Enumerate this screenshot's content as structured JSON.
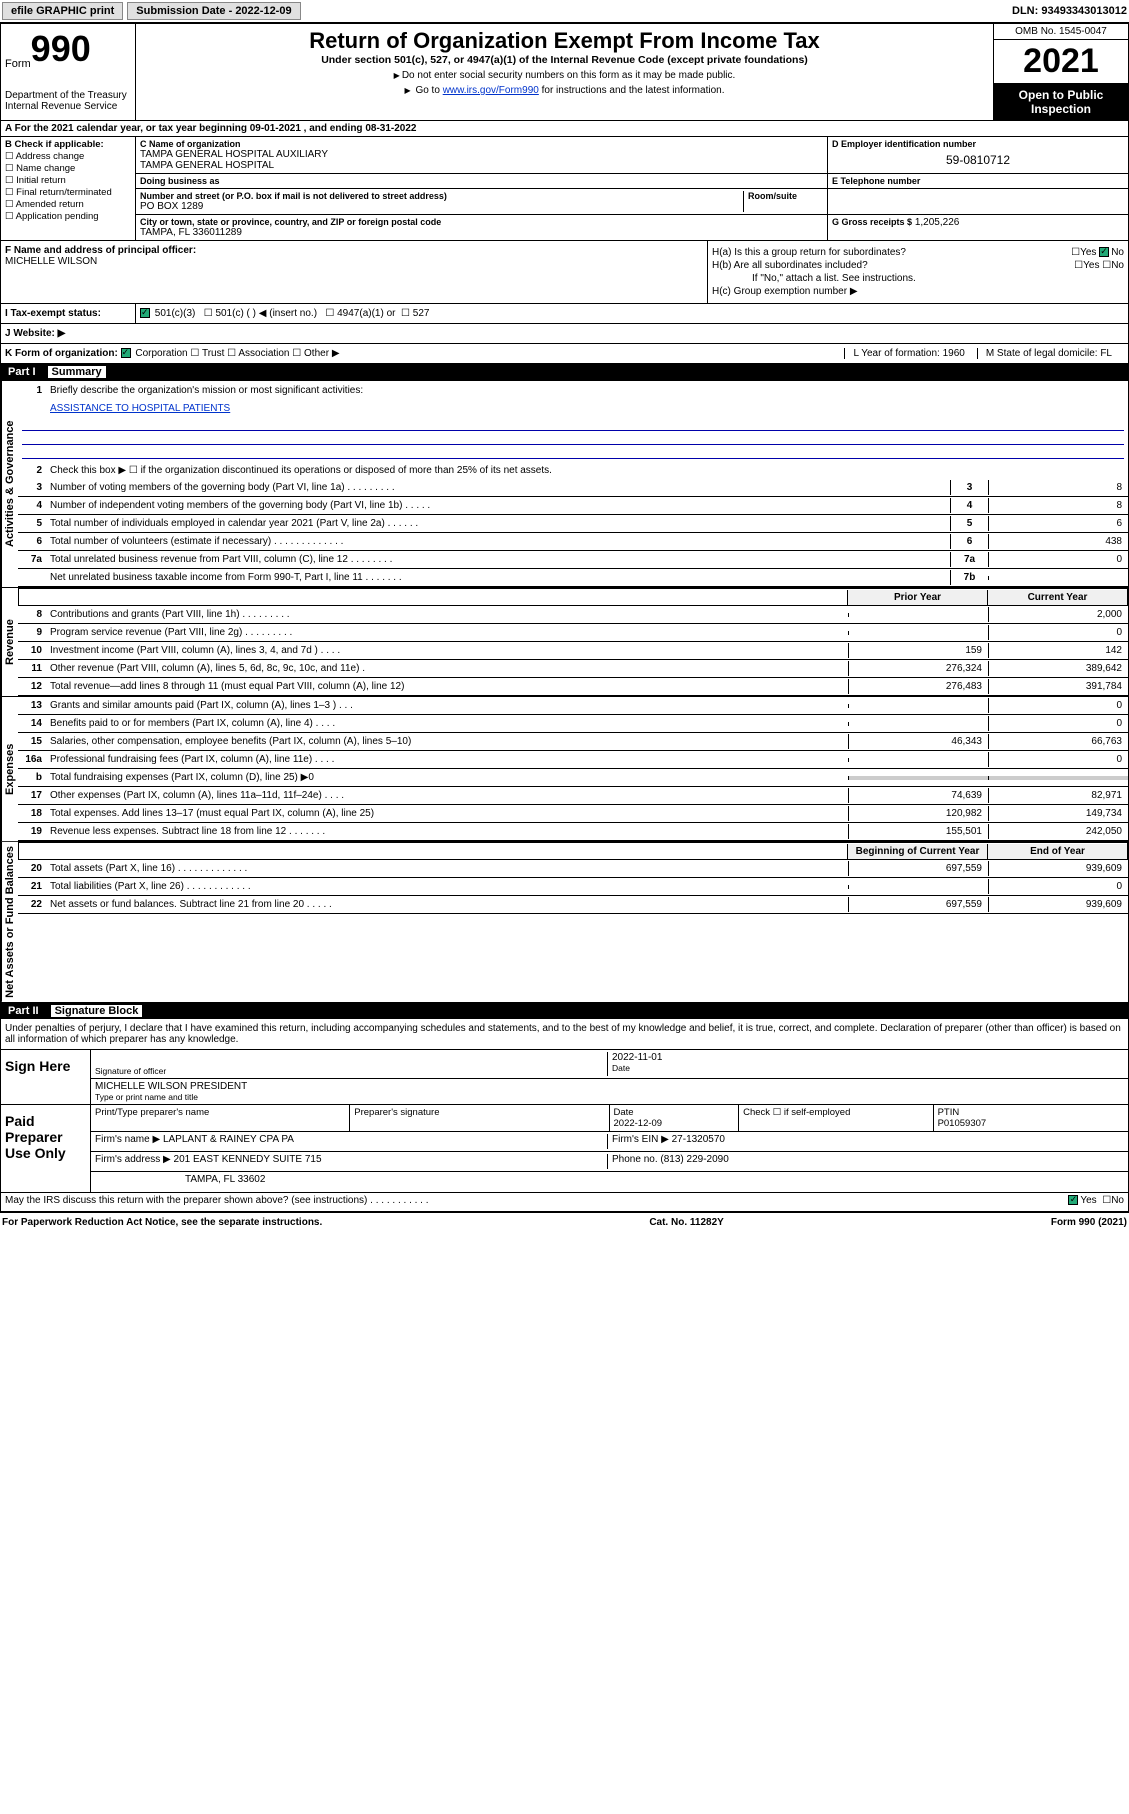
{
  "topbar": {
    "efile": "efile GRAPHIC print",
    "submission_label": "Submission Date - 2022-12-09",
    "dln": "DLN: 93493343013012"
  },
  "header": {
    "form_label": "Form",
    "form_number": "990",
    "dept": "Department of the Treasury\nInternal Revenue Service",
    "title": "Return of Organization Exempt From Income Tax",
    "sub": "Under section 501(c), 527, or 4947(a)(1) of the Internal Revenue Code (except private foundations)",
    "note1": "Do not enter social security numbers on this form as it may be made public.",
    "note2_pre": "Go to ",
    "note2_link": "www.irs.gov/Form990",
    "note2_post": " for instructions and the latest information.",
    "omb": "OMB No. 1545-0047",
    "year": "2021",
    "open": "Open to Public Inspection"
  },
  "row_a": "A For the 2021 calendar year, or tax year beginning 09-01-2021  , and ending 08-31-2022",
  "section_b": {
    "label": "B Check if applicable:",
    "items": [
      "Address change",
      "Name change",
      "Initial return",
      "Final return/terminated",
      "Amended return",
      "Application pending"
    ]
  },
  "section_c": {
    "name_label": "C Name of organization",
    "name1": "TAMPA GENERAL HOSPITAL AUXILIARY",
    "name2": "TAMPA GENERAL HOSPITAL",
    "dba_label": "Doing business as",
    "addr_label": "Number and street (or P.O. box if mail is not delivered to street address)",
    "room_label": "Room/suite",
    "addr": "PO BOX 1289",
    "city_label": "City or town, state or province, country, and ZIP or foreign postal code",
    "city": "TAMPA, FL  336011289"
  },
  "section_d": {
    "label": "D Employer identification number",
    "value": "59-0810712"
  },
  "section_e": {
    "label": "E Telephone number",
    "value": ""
  },
  "section_g": {
    "label": "G Gross receipts $",
    "value": "1,205,226"
  },
  "section_f": {
    "label": "F  Name and address of principal officer:",
    "value": "MICHELLE WILSON"
  },
  "section_h": {
    "ha": "H(a)  Is this a group return for subordinates?",
    "hb": "H(b)  Are all subordinates included?",
    "hnote": "If \"No,\" attach a list. See instructions.",
    "hc": "H(c)  Group exemption number ▶",
    "yes": "Yes",
    "no": "No"
  },
  "section_i": {
    "label": "I  Tax-exempt status:",
    "opt1": "501(c)(3)",
    "opt2": "501(c) (  ) ◀ (insert no.)",
    "opt3": "4947(a)(1) or",
    "opt4": "527"
  },
  "section_j": {
    "label": "J  Website: ▶"
  },
  "section_k": {
    "label": "K Form of organization:",
    "opts": [
      "Corporation",
      "Trust",
      "Association",
      "Other ▶"
    ],
    "l": "L Year of formation: 1960",
    "m": "M State of legal domicile: FL"
  },
  "part1": {
    "label": "Part I",
    "title": "Summary"
  },
  "summary": {
    "q1": "Briefly describe the organization's mission or most significant activities:",
    "mission": "ASSISTANCE TO HOSPITAL PATIENTS",
    "q2": "Check this box ▶ ☐  if the organization discontinued its operations or disposed of more than 25% of its net assets.",
    "rows3_7": [
      {
        "n": "3",
        "d": "Number of voting members of the governing body (Part VI, line 1a)  .    .    .    .    .    .    .    .    .",
        "b": "3",
        "v": "8"
      },
      {
        "n": "4",
        "d": "Number of independent voting members of the governing body (Part VI, line 1b)  .    .    .    .    .",
        "b": "4",
        "v": "8"
      },
      {
        "n": "5",
        "d": "Total number of individuals employed in calendar year 2021 (Part V, line 2a)  .    .    .    .    .    .",
        "b": "5",
        "v": "6"
      },
      {
        "n": "6",
        "d": "Total number of volunteers (estimate if necessary)  .    .    .    .    .    .    .    .    .    .    .    .    .",
        "b": "6",
        "v": "438"
      },
      {
        "n": "7a",
        "d": "Total unrelated business revenue from Part VIII, column (C), line 12  .    .    .    .    .    .    .    .",
        "b": "7a",
        "v": "0"
      },
      {
        "n": "",
        "d": "Net unrelated business taxable income from Form 990-T, Part I, line 11  .    .    .    .    .    .    .",
        "b": "7b",
        "v": ""
      }
    ],
    "col_hdr1": "Prior Year",
    "col_hdr2": "Current Year",
    "revenue": [
      {
        "n": "8",
        "d": "Contributions and grants (Part VIII, line 1h)  .    .    .    .    .    .    .    .    .",
        "p": "",
        "c": "2,000"
      },
      {
        "n": "9",
        "d": "Program service revenue (Part VIII, line 2g)  .    .    .    .    .    .    .    .    .",
        "p": "",
        "c": "0"
      },
      {
        "n": "10",
        "d": "Investment income (Part VIII, column (A), lines 3, 4, and 7d )  .    .    .    .",
        "p": "159",
        "c": "142"
      },
      {
        "n": "11",
        "d": "Other revenue (Part VIII, column (A), lines 5, 6d, 8c, 9c, 10c, and 11e)  .",
        "p": "276,324",
        "c": "389,642"
      },
      {
        "n": "12",
        "d": "Total revenue—add lines 8 through 11 (must equal Part VIII, column (A), line 12)",
        "p": "276,483",
        "c": "391,784"
      }
    ],
    "expenses": [
      {
        "n": "13",
        "d": "Grants and similar amounts paid (Part IX, column (A), lines 1–3 )  .    .    .",
        "p": "",
        "c": "0"
      },
      {
        "n": "14",
        "d": "Benefits paid to or for members (Part IX, column (A), line 4)  .    .    .    .",
        "p": "",
        "c": "0"
      },
      {
        "n": "15",
        "d": "Salaries, other compensation, employee benefits (Part IX, column (A), lines 5–10)",
        "p": "46,343",
        "c": "66,763"
      },
      {
        "n": "16a",
        "d": "Professional fundraising fees (Part IX, column (A), line 11e)  .    .    .    .",
        "p": "",
        "c": "0"
      },
      {
        "n": "b",
        "d": "Total fundraising expenses (Part IX, column (D), line 25) ▶0",
        "p": "",
        "c": "",
        "single": true
      },
      {
        "n": "17",
        "d": "Other expenses (Part IX, column (A), lines 11a–11d, 11f–24e)  .    .    .    .",
        "p": "74,639",
        "c": "82,971"
      },
      {
        "n": "18",
        "d": "Total expenses. Add lines 13–17 (must equal Part IX, column (A), line 25)",
        "p": "120,982",
        "c": "149,734"
      },
      {
        "n": "19",
        "d": "Revenue less expenses. Subtract line 18 from line 12  .    .    .    .    .    .    .",
        "p": "155,501",
        "c": "242,050"
      }
    ],
    "net_hdr1": "Beginning of Current Year",
    "net_hdr2": "End of Year",
    "net": [
      {
        "n": "20",
        "d": "Total assets (Part X, line 16)  .    .    .    .    .    .    .    .    .    .    .    .    .",
        "p": "697,559",
        "c": "939,609"
      },
      {
        "n": "21",
        "d": "Total liabilities (Part X, line 26)  .    .    .    .    .    .    .    .    .    .    .    .",
        "p": "",
        "c": "0"
      },
      {
        "n": "22",
        "d": "Net assets or fund balances. Subtract line 21 from line 20  .    .    .    .    .",
        "p": "697,559",
        "c": "939,609"
      }
    ],
    "vtabs": [
      "Activities & Governance",
      "Revenue",
      "Expenses",
      "Net Assets or Fund Balances"
    ]
  },
  "part2": {
    "label": "Part II",
    "title": "Signature Block"
  },
  "sig": {
    "intro": "Under penalties of perjury, I declare that I have examined this return, including accompanying schedules and statements, and to the best of my knowledge and belief, it is true, correct, and complete. Declaration of preparer (other than officer) is based on all information of which preparer has any knowledge.",
    "sign_here": "Sign Here",
    "sig_officer": "Signature of officer",
    "date": "Date",
    "date_val": "2022-11-01",
    "officer": "MICHELLE WILSON  PRESIDENT",
    "officer_sub": "Type or print name and title",
    "paid": "Paid Preparer Use Only",
    "p_name_label": "Print/Type preparer's name",
    "p_sig_label": "Preparer's signature",
    "p_date_label": "Date",
    "p_date": "2022-12-09",
    "p_check": "Check ☐ if self-employed",
    "ptin_label": "PTIN",
    "ptin": "P01059307",
    "firm_name_label": "Firm's name    ▶",
    "firm_name": "LAPLANT & RAINEY CPA PA",
    "firm_ein_label": "Firm's EIN ▶",
    "firm_ein": "27-1320570",
    "firm_addr_label": "Firm's address ▶",
    "firm_addr1": "201 EAST KENNEDY SUITE 715",
    "firm_addr2": "TAMPA, FL  33602",
    "phone_label": "Phone no.",
    "phone": "(813) 229-2090",
    "discuss": "May the IRS discuss this return with the preparer shown above? (see instructions)  .    .    .    .    .    .    .    .    .    .    .",
    "yes": "Yes",
    "no": "No"
  },
  "footer": {
    "pra": "For Paperwork Reduction Act Notice, see the separate instructions.",
    "cat": "Cat. No. 11282Y",
    "form": "Form 990 (2021)"
  },
  "colors": {
    "link": "#0033cc",
    "black": "#000000",
    "white": "#ffffff",
    "check_green": "#22aa77"
  }
}
